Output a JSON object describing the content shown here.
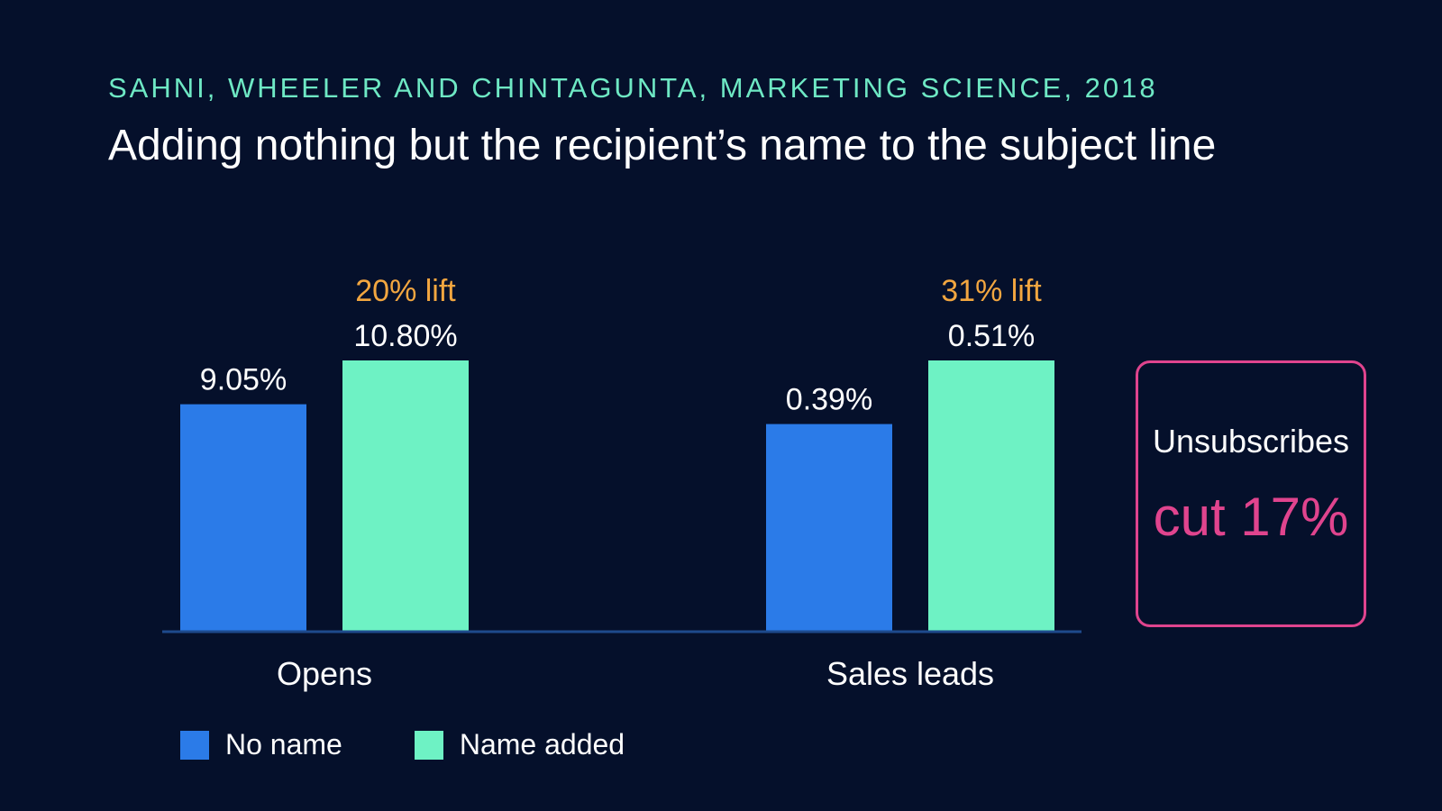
{
  "header": {
    "source": "SAHNI, WHEELER AND CHINTAGUNTA, MARKETING SCIENCE, 2018",
    "title": "Adding nothing but the recipient’s name to the subject line"
  },
  "callout": {
    "label": "Unsubscribes",
    "value": "cut 17%",
    "color": "#e0448e"
  },
  "chart_data": {
    "type": "bar",
    "categories": [
      "Opens",
      "Sales leads"
    ],
    "series": [
      {
        "name": "No name",
        "color": "#2b7be8",
        "values": [
          9.05,
          0.39
        ],
        "labels": [
          "9.05%",
          "0.39%"
        ]
      },
      {
        "name": "Name added",
        "color": "#6ef2c4",
        "values": [
          10.8,
          0.51
        ],
        "labels": [
          "10.80%",
          "0.51%"
        ]
      }
    ],
    "annotations": [
      "20% lift",
      "31% lift"
    ],
    "annotation_color": "#f2a640",
    "legend_position": "bottom-left",
    "grid": false
  }
}
